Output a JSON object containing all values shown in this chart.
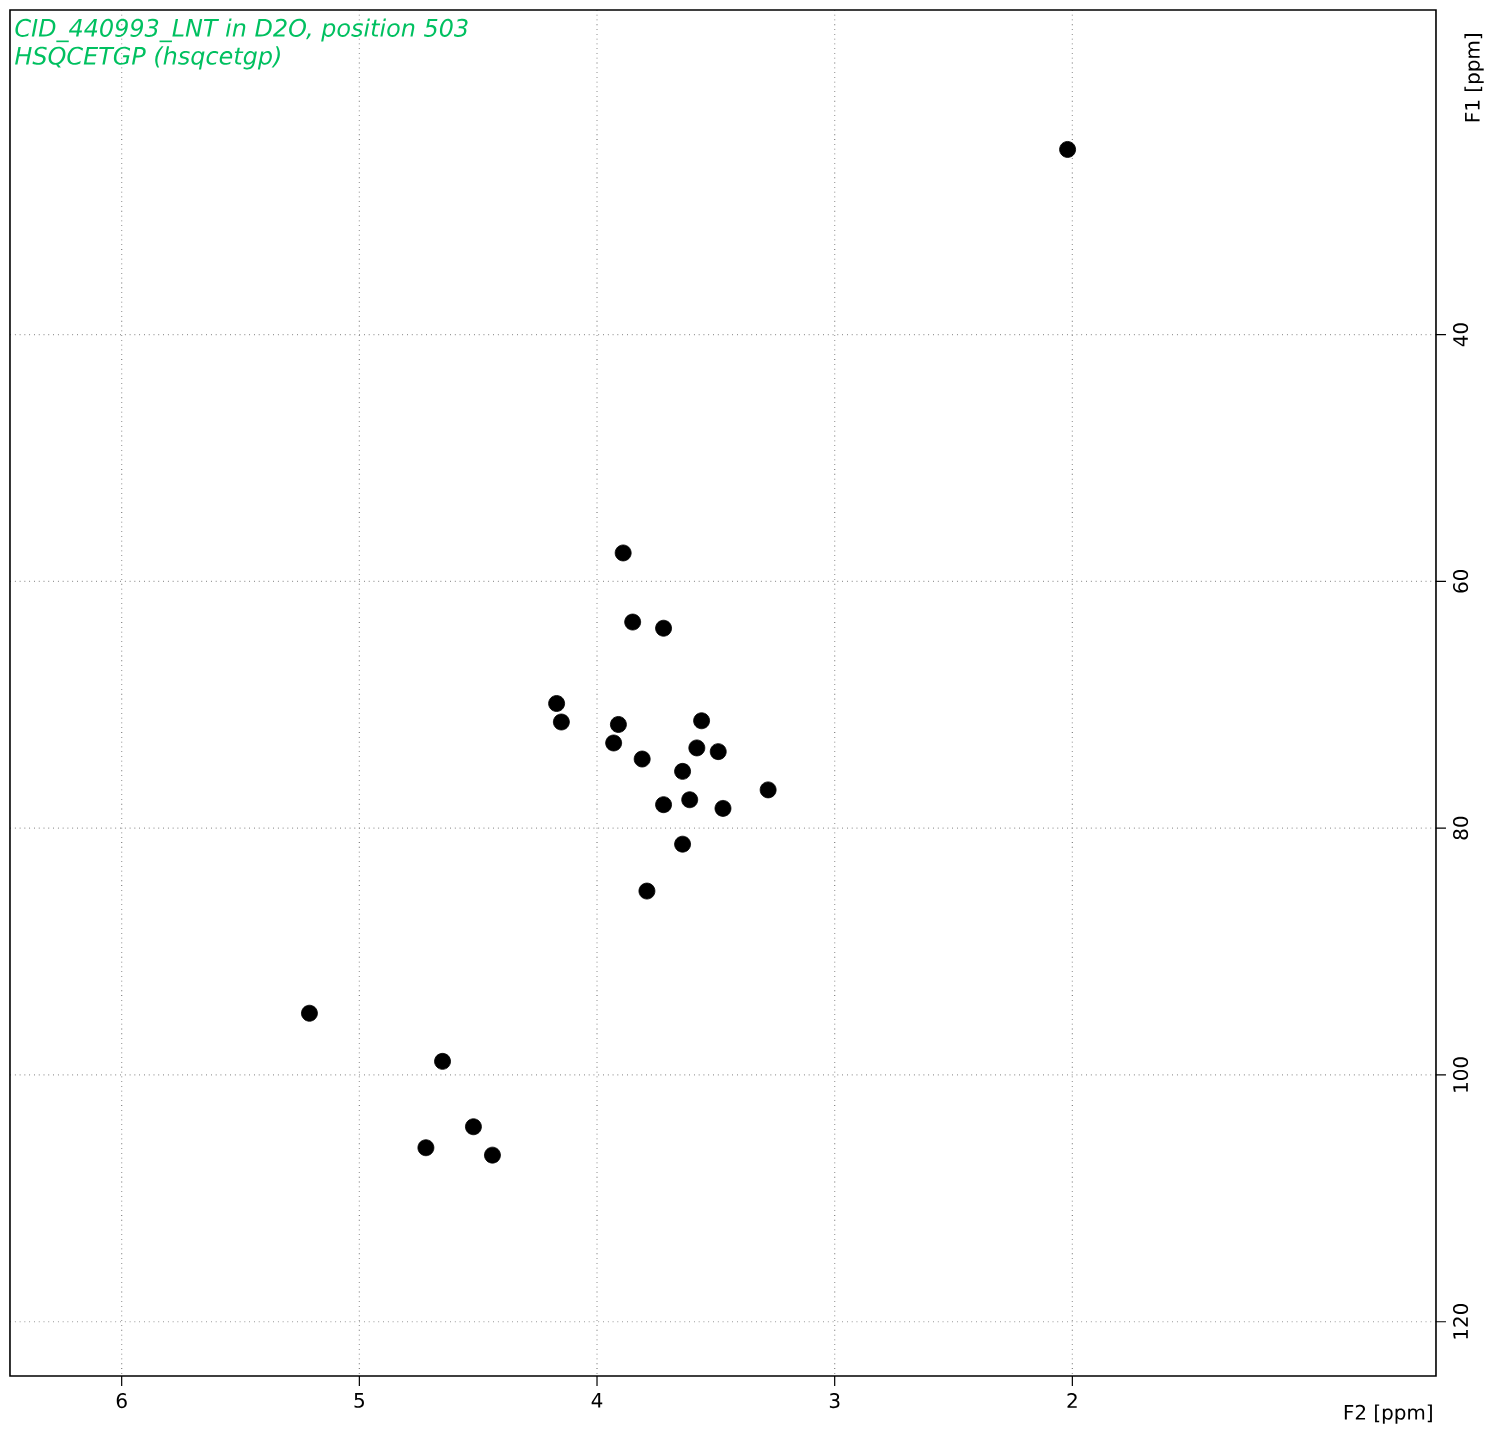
{
  "chart_data": {
    "type": "scatter",
    "title": "CID_440993_LNT in D2O, position 503",
    "subtitle": "HSQCETGP (hsqcetgp)",
    "xlabel": "F2 [ppm]",
    "ylabel": "F1 [ppm]",
    "x": [
      2.02,
      3.89,
      3.85,
      3.72,
      4.17,
      4.15,
      3.91,
      3.93,
      3.81,
      3.56,
      3.58,
      3.49,
      3.64,
      3.28,
      3.72,
      3.61,
      3.47,
      3.64,
      3.79,
      5.21,
      4.65,
      4.72,
      4.52,
      4.44
    ],
    "values": [
      25.0,
      57.7,
      63.3,
      63.8,
      69.9,
      71.4,
      71.6,
      73.1,
      74.4,
      71.3,
      73.5,
      73.8,
      75.4,
      76.9,
      78.1,
      77.7,
      78.4,
      81.3,
      85.1,
      95.0,
      98.9,
      105.9,
      104.2,
      106.5
    ],
    "color": "#000000",
    "xlim": [
      6.47,
      0.47
    ],
    "ylim": [
      124.4,
      13.7
    ],
    "xticks": [
      6,
      5,
      4,
      3,
      2
    ],
    "yticks": [
      40,
      60,
      80,
      100,
      120
    ],
    "grid": true
  }
}
